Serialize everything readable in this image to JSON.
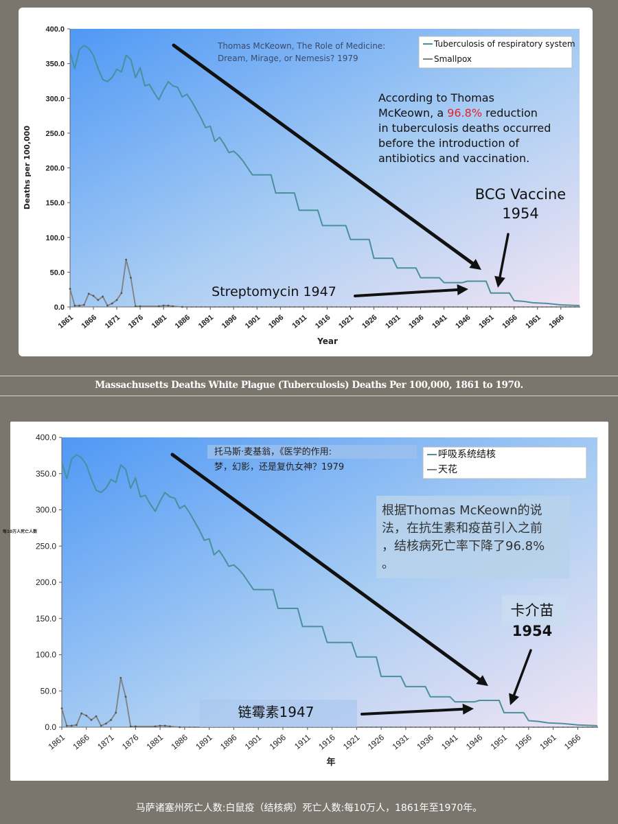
{
  "panels": [
    {
      "lang": "en",
      "caption": "Massachusetts Deaths White Plague (Tuberculosis) Deaths Per 100,000, 1861 to 1970.",
      "chart_data": {
        "type": "line",
        "title": "",
        "xlabel": "Year",
        "ylabel": "Deaths per 100,000",
        "ylim": [
          0,
          400
        ],
        "yticks": [
          "400.0",
          "350.0",
          "300.0",
          "250.0",
          "200.0",
          "150.0",
          "100.0",
          "50.0",
          "0.0"
        ],
        "xticks": [
          "1861",
          "1866",
          "1871",
          "1876",
          "1881",
          "1886",
          "1891",
          "1896",
          "1901",
          "1906",
          "1911",
          "1916",
          "1921",
          "1926",
          "1931",
          "1936",
          "1941",
          "1946",
          "1951",
          "1956",
          "1961",
          "1966"
        ],
        "xlim": [
          1861,
          1970
        ],
        "legend_position": "top-right",
        "series": [
          {
            "name": "Tuberculosis of respiratory system",
            "color": "#4a8f9c",
            "points": [
              [
                1861,
                366
              ],
              [
                1862,
                343
              ],
              [
                1863,
                370
              ],
              [
                1864,
                376
              ],
              [
                1865,
                372
              ],
              [
                1866,
                362
              ],
              [
                1867,
                343
              ],
              [
                1868,
                327
              ],
              [
                1869,
                324
              ],
              [
                1870,
                330
              ],
              [
                1871,
                342
              ],
              [
                1872,
                338
              ],
              [
                1873,
                362
              ],
              [
                1874,
                356
              ],
              [
                1875,
                330
              ],
              [
                1876,
                344
              ],
              [
                1877,
                318
              ],
              [
                1878,
                320
              ],
              [
                1879,
                308
              ],
              [
                1880,
                298
              ],
              [
                1881,
                312
              ],
              [
                1882,
                324
              ],
              [
                1883,
                318
              ],
              [
                1884,
                316
              ],
              [
                1885,
                302
              ],
              [
                1886,
                306
              ],
              [
                1887,
                296
              ],
              [
                1888,
                284
              ],
              [
                1889,
                272
              ],
              [
                1890,
                258
              ],
              [
                1891,
                260
              ],
              [
                1892,
                238
              ],
              [
                1893,
                244
              ],
              [
                1894,
                234
              ],
              [
                1895,
                222
              ],
              [
                1896,
                224
              ],
              [
                1897,
                218
              ],
              [
                1898,
                210
              ],
              [
                1899,
                200
              ],
              [
                1900,
                190
              ],
              [
                1904,
                190
              ],
              [
                1905,
                164
              ],
              [
                1909,
                164
              ],
              [
                1910,
                139
              ],
              [
                1914,
                139
              ],
              [
                1915,
                117
              ],
              [
                1920,
                117
              ],
              [
                1921,
                97
              ],
              [
                1925,
                97
              ],
              [
                1926,
                70
              ],
              [
                1930,
                70
              ],
              [
                1931,
                56
              ],
              [
                1935,
                56
              ],
              [
                1936,
                42
              ],
              [
                1940,
                42
              ],
              [
                1941,
                35
              ],
              [
                1945,
                35
              ],
              [
                1946,
                37
              ],
              [
                1950,
                37
              ],
              [
                1951,
                20
              ],
              [
                1955,
                20
              ],
              [
                1956,
                9
              ],
              [
                1958,
                8
              ],
              [
                1960,
                6
              ],
              [
                1963,
                5
              ],
              [
                1966,
                3
              ],
              [
                1970,
                2
              ]
            ]
          },
          {
            "name": "Smallpox",
            "color": "#7f7f7f",
            "points": [
              [
                1861,
                26
              ],
              [
                1862,
                2
              ],
              [
                1863,
                2
              ],
              [
                1864,
                3
              ],
              [
                1865,
                19
              ],
              [
                1866,
                16
              ],
              [
                1867,
                10
              ],
              [
                1868,
                15
              ],
              [
                1869,
                2
              ],
              [
                1870,
                5
              ],
              [
                1871,
                10
              ],
              [
                1872,
                20
              ],
              [
                1873,
                68
              ],
              [
                1874,
                42
              ],
              [
                1875,
                1
              ],
              [
                1876,
                1
              ],
              [
                1880,
                1
              ],
              [
                1881,
                2
              ],
              [
                1882,
                2
              ],
              [
                1883,
                1
              ],
              [
                1885,
                0
              ],
              [
                1970,
                0
              ]
            ]
          }
        ],
        "annotations": {
          "source": [
            "Thomas McKeown, The Role of Medicine:",
            "Dream, Mirage, or Nemesis? 1979"
          ],
          "note_lines": [
            [
              {
                "t": "According to Thomas",
                "c": "#111111"
              }
            ],
            [
              {
                "t": "McKeown, a ",
                "c": "#111111"
              },
              {
                "t": "96.8%",
                "c": "#e8202a"
              },
              {
                "t": " reduction",
                "c": "#111111"
              }
            ],
            [
              {
                "t": "in tuberculosis deaths occurred",
                "c": "#111111"
              }
            ],
            [
              {
                "t": "before the introduction of",
                "c": "#111111"
              }
            ],
            [
              {
                "t": "antibiotics and vaccination.",
                "c": "#111111"
              }
            ]
          ],
          "bcg": [
            "BCG Vaccine",
            "1954"
          ],
          "strep": "Streptomycin 1947"
        }
      }
    },
    {
      "lang": "zh",
      "caption": "马萨诸塞州死亡人数:白鼠疫（结核病）死亡人数:每10万人，1861年至1970年。",
      "chart_data": {
        "type": "line",
        "title": "",
        "xlabel": "年",
        "ylabel": "每10万人死亡人数",
        "ylim": [
          0,
          400
        ],
        "yticks": [
          "400.0",
          "350.0",
          "300.0",
          "250.0",
          "200.0",
          "150.0",
          "100.0",
          "50.0",
          "0.0"
        ],
        "xticks": [
          "1861",
          "1866",
          "1871",
          "1876",
          "1881",
          "1886",
          "1891",
          "1896",
          "1901",
          "1906",
          "1911",
          "1916",
          "1921",
          "1926",
          "1931",
          "1936",
          "1941",
          "1946",
          "1951",
          "1956",
          "1961",
          "1966"
        ],
        "xlim": [
          1861,
          1970
        ],
        "legend_position": "top-right",
        "series": [
          {
            "name": "呼吸系统结核",
            "color": "#4a8f9c",
            "points": [
              [
                1861,
                366
              ],
              [
                1862,
                343
              ],
              [
                1863,
                370
              ],
              [
                1864,
                376
              ],
              [
                1865,
                372
              ],
              [
                1866,
                362
              ],
              [
                1867,
                343
              ],
              [
                1868,
                327
              ],
              [
                1869,
                324
              ],
              [
                1870,
                330
              ],
              [
                1871,
                342
              ],
              [
                1872,
                338
              ],
              [
                1873,
                362
              ],
              [
                1874,
                356
              ],
              [
                1875,
                330
              ],
              [
                1876,
                344
              ],
              [
                1877,
                318
              ],
              [
                1878,
                320
              ],
              [
                1879,
                308
              ],
              [
                1880,
                298
              ],
              [
                1881,
                312
              ],
              [
                1882,
                324
              ],
              [
                1883,
                318
              ],
              [
                1884,
                316
              ],
              [
                1885,
                302
              ],
              [
                1886,
                306
              ],
              [
                1887,
                296
              ],
              [
                1888,
                284
              ],
              [
                1889,
                272
              ],
              [
                1890,
                258
              ],
              [
                1891,
                260
              ],
              [
                1892,
                238
              ],
              [
                1893,
                244
              ],
              [
                1894,
                234
              ],
              [
                1895,
                222
              ],
              [
                1896,
                224
              ],
              [
                1897,
                218
              ],
              [
                1898,
                210
              ],
              [
                1899,
                200
              ],
              [
                1900,
                190
              ],
              [
                1904,
                190
              ],
              [
                1905,
                164
              ],
              [
                1909,
                164
              ],
              [
                1910,
                139
              ],
              [
                1914,
                139
              ],
              [
                1915,
                117
              ],
              [
                1920,
                117
              ],
              [
                1921,
                97
              ],
              [
                1925,
                97
              ],
              [
                1926,
                70
              ],
              [
                1930,
                70
              ],
              [
                1931,
                56
              ],
              [
                1935,
                56
              ],
              [
                1936,
                42
              ],
              [
                1940,
                42
              ],
              [
                1941,
                35
              ],
              [
                1945,
                35
              ],
              [
                1946,
                37
              ],
              [
                1950,
                37
              ],
              [
                1951,
                20
              ],
              [
                1955,
                20
              ],
              [
                1956,
                9
              ],
              [
                1958,
                8
              ],
              [
                1960,
                6
              ],
              [
                1963,
                5
              ],
              [
                1966,
                3
              ],
              [
                1970,
                2
              ]
            ]
          },
          {
            "name": "天花",
            "color": "#7f7f7f",
            "points": [
              [
                1861,
                26
              ],
              [
                1862,
                2
              ],
              [
                1863,
                2
              ],
              [
                1864,
                3
              ],
              [
                1865,
                19
              ],
              [
                1866,
                16
              ],
              [
                1867,
                10
              ],
              [
                1868,
                15
              ],
              [
                1869,
                2
              ],
              [
                1870,
                5
              ],
              [
                1871,
                10
              ],
              [
                1872,
                20
              ],
              [
                1873,
                68
              ],
              [
                1874,
                42
              ],
              [
                1875,
                1
              ],
              [
                1876,
                1
              ],
              [
                1880,
                1
              ],
              [
                1881,
                2
              ],
              [
                1882,
                2
              ],
              [
                1883,
                1
              ],
              [
                1885,
                0
              ],
              [
                1970,
                0
              ]
            ]
          }
        ],
        "annotations": {
          "source": [
            "托马斯·麦基翁，《医学的作用:",
            "梦，幻影，还是复仇女神？1979"
          ],
          "note_lines": [
            [
              {
                "t": "根据Thomas McKeown的说",
                "c": "#333333"
              }
            ],
            [
              {
                "t": "法，在抗生素和疫苗引入之前",
                "c": "#333333"
              }
            ],
            [
              {
                "t": "，结核病死亡率下降了96.8%",
                "c": "#333333"
              }
            ],
            [
              {
                "t": "。",
                "c": "#333333"
              }
            ]
          ],
          "bcg": [
            "卡介苗",
            "1954"
          ],
          "strep": "链霉素1947"
        }
      }
    }
  ]
}
